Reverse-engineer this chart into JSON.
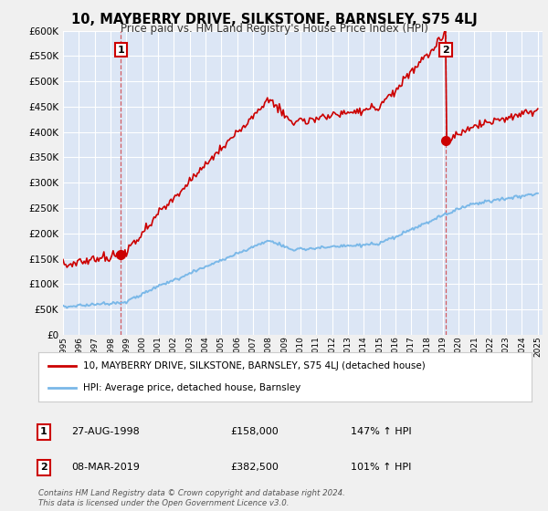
{
  "title": "10, MAYBERRY DRIVE, SILKSTONE, BARNSLEY, S75 4LJ",
  "subtitle": "Price paid vs. HM Land Registry's House Price Index (HPI)",
  "background_color": "#f0f0f0",
  "plot_bg_color": "#dce6f5",
  "grid_color": "#ffffff",
  "sale1_date": "27-AUG-1998",
  "sale1_price": 158000,
  "sale1_hpi_pct": "147%",
  "sale2_date": "08-MAR-2019",
  "sale2_price": 382500,
  "sale2_hpi_pct": "101%",
  "legend_label1": "10, MAYBERRY DRIVE, SILKSTONE, BARNSLEY, S75 4LJ (detached house)",
  "legend_label2": "HPI: Average price, detached house, Barnsley",
  "footer": "Contains HM Land Registry data © Crown copyright and database right 2024.\nThis data is licensed under the Open Government Licence v3.0.",
  "hpi_color": "#7ab8e8",
  "price_color": "#cc0000",
  "ylim_min": 0,
  "ylim_max": 600000,
  "sale1_year": 1998.65,
  "sale2_year": 2019.18
}
